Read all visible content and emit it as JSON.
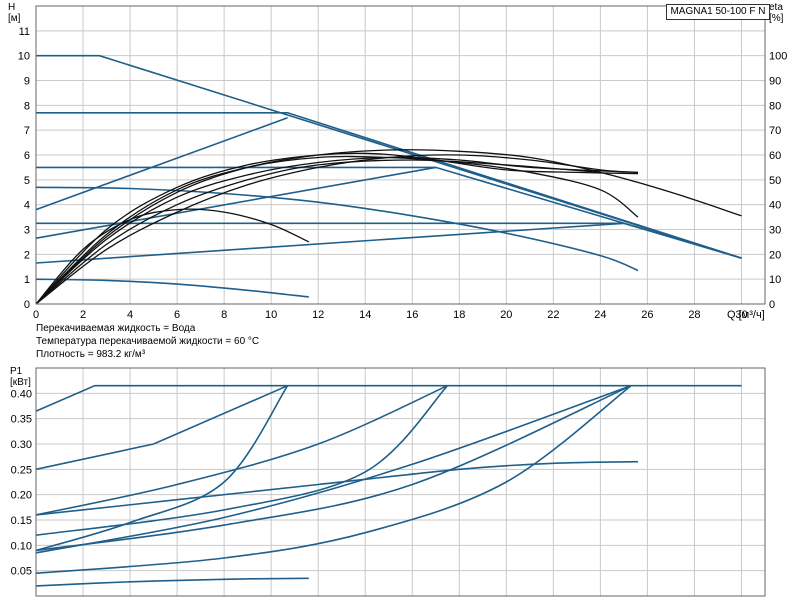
{
  "chart_data": [
    {
      "type": "line",
      "title": "MAGNA1 50-100 F N",
      "xlabel": "Q [м³/ч]",
      "ylabel_left": "H\n[м]",
      "ylabel_right": "eta\n[%]",
      "xlim": [
        0,
        31
      ],
      "ylim_left": [
        0,
        12
      ],
      "ylim_right": [
        0,
        120
      ],
      "xticks": [
        0,
        2,
        4,
        6,
        8,
        10,
        12,
        14,
        16,
        18,
        20,
        22,
        24,
        26,
        28,
        30
      ],
      "yticks_left": [
        0,
        1,
        2,
        3,
        4,
        5,
        6,
        7,
        8,
        9,
        10,
        11
      ],
      "yticks_right": [
        0,
        10,
        20,
        30,
        40,
        50,
        60,
        70,
        80,
        90,
        100
      ],
      "grid": true,
      "notes": [
        "Перекачиваемая жидкость = Вода",
        "Температура перекачиваемой жидкости = 60 °C",
        "Плотность = 983.2 кг/м³"
      ],
      "head_series": [
        {
          "color": "#1f5f8b",
          "points": [
            [
              0,
              10
            ],
            [
              2.7,
              10
            ],
            [
              30,
              1.85
            ]
          ]
        },
        {
          "color": "#1f5f8b",
          "points": [
            [
              0,
              7.7
            ],
            [
              10.7,
              7.7
            ],
            [
              30,
              1.85
            ]
          ]
        },
        {
          "color": "#1f5f8b",
          "points": [
            [
              0,
              5.5
            ],
            [
              17,
              5.5
            ],
            [
              30,
              1.85
            ]
          ]
        },
        {
          "color": "#1f5f8b",
          "points": [
            [
              0,
              3.25
            ],
            [
              25,
              3.25
            ],
            [
              30,
              1.85
            ]
          ]
        },
        {
          "color": "#1f5f8b",
          "points": [
            [
              0,
              3.8
            ],
            [
              10.7,
              7.5
            ]
          ]
        },
        {
          "color": "#1f5f8b",
          "points": [
            [
              0,
              2.65
            ],
            [
              17,
              5.5
            ]
          ]
        },
        {
          "color": "#1f5f8b",
          "points": [
            [
              0,
              1.65
            ],
            [
              25,
              3.25
            ]
          ]
        },
        {
          "color": "#1f5f8b",
          "points": [
            [
              0,
              4.7
            ],
            [
              4,
              4.65
            ],
            [
              8,
              4.45
            ],
            [
              12,
              4.1
            ],
            [
              16,
              3.55
            ],
            [
              20,
              2.85
            ],
            [
              24,
              1.95
            ],
            [
              25.6,
              1.35
            ]
          ]
        },
        {
          "color": "#1f5f8b",
          "points": [
            [
              0,
              1.0
            ],
            [
              3,
              0.95
            ],
            [
              6,
              0.8
            ],
            [
              9,
              0.55
            ],
            [
              11.6,
              0.28
            ]
          ]
        }
      ],
      "eta_series": [
        {
          "color": "#111111",
          "points": [
            [
              0,
              0
            ],
            [
              3,
              27
            ],
            [
              6,
              45
            ],
            [
              9,
              55
            ],
            [
              12,
              60
            ],
            [
              15,
              62
            ],
            [
              18,
              61.5
            ],
            [
              21,
              59
            ],
            [
              24,
              53
            ],
            [
              27,
              45
            ],
            [
              30,
              35.5
            ]
          ]
        },
        {
          "color": "#111111",
          "points": [
            [
              0,
              0
            ],
            [
              3,
              28
            ],
            [
              6,
              46
            ],
            [
              9,
              55
            ],
            [
              12,
              59
            ],
            [
              15,
              59
            ],
            [
              18,
              57
            ],
            [
              21,
              53
            ],
            [
              24,
              46
            ],
            [
              25.6,
              35
            ]
          ]
        },
        {
          "color": "#111111",
          "points": [
            [
              0,
              0
            ],
            [
              3,
              30
            ],
            [
              6,
              47
            ],
            [
              9,
              56
            ],
            [
              12,
              60
            ],
            [
              14.5,
              60.5
            ],
            [
              17,
              58
            ],
            [
              20,
              54
            ],
            [
              23,
              53
            ],
            [
              25.6,
              52.5
            ]
          ]
        },
        {
          "color": "#111111",
          "points": [
            [
              0,
              0
            ],
            [
              3,
              26
            ],
            [
              6,
              43
            ],
            [
              9,
              52
            ],
            [
              12,
              57
            ],
            [
              15,
              59
            ],
            [
              18,
              58
            ],
            [
              21,
              55
            ],
            [
              25.6,
              53
            ]
          ]
        },
        {
          "color": "#111111",
          "points": [
            [
              0,
              0
            ],
            [
              2,
              22
            ],
            [
              4,
              34
            ],
            [
              6,
              38
            ],
            [
              8,
              37
            ],
            [
              10,
              32
            ],
            [
              11.6,
              25
            ]
          ]
        },
        {
          "color": "#111111",
          "points": [
            [
              0,
              0
            ],
            [
              3,
              22
            ],
            [
              6,
              37
            ],
            [
              9,
              48
            ],
            [
              12,
              55
            ],
            [
              15,
              59
            ],
            [
              18,
              60
            ],
            [
              21,
              58
            ],
            [
              24,
              54
            ],
            [
              25.6,
              53
            ]
          ]
        },
        {
          "color": "#111111",
          "points": [
            [
              0,
              0
            ],
            [
              3,
              24
            ],
            [
              6,
              40
            ],
            [
              9,
              50
            ],
            [
              12,
              56
            ],
            [
              16,
              58
            ],
            [
              20,
              56
            ],
            [
              24,
              53
            ]
          ]
        }
      ]
    },
    {
      "type": "line",
      "title": "",
      "xlabel": "",
      "ylabel": "P1\n[кВт]",
      "xlim": [
        0,
        31
      ],
      "ylim": [
        0,
        0.45
      ],
      "yticks": [
        "0.05",
        "0.10",
        "0.15",
        "0.20",
        "0.25",
        "0.30",
        "0.35",
        "0.40"
      ],
      "grid": true,
      "power_series": [
        {
          "color": "#1f5f8b",
          "points": [
            [
              0,
              0.365
            ],
            [
              2.5,
              0.415
            ],
            [
              30,
              0.415
            ]
          ]
        },
        {
          "color": "#1f5f8b",
          "points": [
            [
              0,
              0.25
            ],
            [
              5,
              0.3
            ],
            [
              10.7,
              0.415
            ]
          ]
        },
        {
          "color": "#1f5f8b",
          "points": [
            [
              0,
              0.16
            ],
            [
              6,
              0.22
            ],
            [
              12,
              0.3
            ],
            [
              17.5,
              0.415
            ]
          ]
        },
        {
          "color": "#1f5f8b",
          "points": [
            [
              0,
              0.085
            ],
            [
              8,
              0.155
            ],
            [
              16,
              0.26
            ],
            [
              25.3,
              0.415
            ]
          ]
        },
        {
          "color": "#1f5f8b",
          "points": [
            [
              0,
              0.09
            ],
            [
              4,
              0.145
            ],
            [
              8,
              0.225
            ],
            [
              10.7,
              0.415
            ]
          ]
        },
        {
          "color": "#1f5f8b",
          "points": [
            [
              0,
              0.12
            ],
            [
              8,
              0.17
            ],
            [
              14,
              0.245
            ],
            [
              17.5,
              0.415
            ]
          ]
        },
        {
          "color": "#1f5f8b",
          "points": [
            [
              0,
              0.09
            ],
            [
              8,
              0.14
            ],
            [
              16,
              0.22
            ],
            [
              25.3,
              0.415
            ]
          ]
        },
        {
          "color": "#1f5f8b",
          "points": [
            [
              0,
              0.045
            ],
            [
              8,
              0.075
            ],
            [
              14,
              0.125
            ],
            [
              20,
              0.225
            ],
            [
              25.3,
              0.415
            ]
          ]
        },
        {
          "color": "#1f5f8b",
          "points": [
            [
              0,
              0.16
            ],
            [
              6,
              0.19
            ],
            [
              12,
              0.22
            ],
            [
              18,
              0.25
            ],
            [
              22,
              0.262
            ],
            [
              25.6,
              0.265
            ]
          ]
        },
        {
          "color": "#1f5f8b",
          "points": [
            [
              0,
              0.02
            ],
            [
              4,
              0.028
            ],
            [
              8,
              0.033
            ],
            [
              11.6,
              0.035
            ]
          ]
        }
      ]
    }
  ]
}
